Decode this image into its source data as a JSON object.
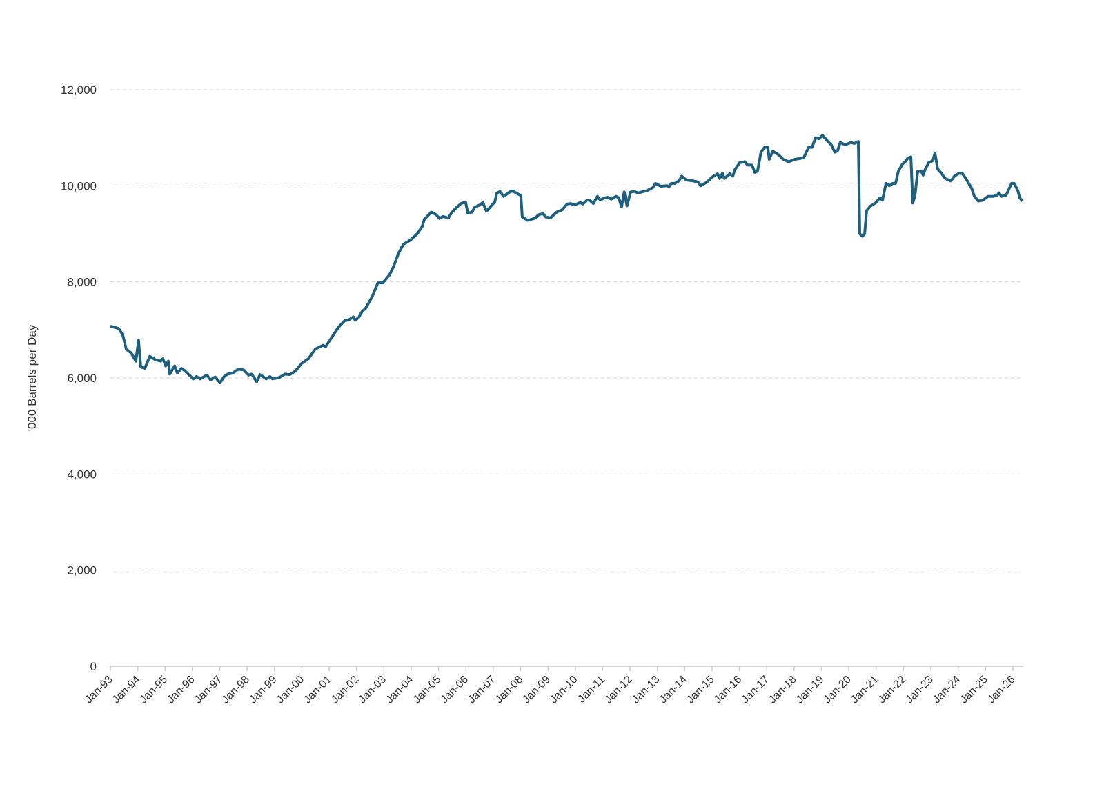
{
  "chart_data": {
    "type": "line",
    "y_label": "'000 Barrels per Day",
    "color": "#1d5f7f",
    "grid": true,
    "x": [
      1993.0,
      1993.3,
      1993.45,
      1993.58,
      1993.76,
      1993.93,
      1994.03,
      1994.11,
      1994.26,
      1994.44,
      1994.64,
      1994.84,
      1994.92,
      1995.02,
      1995.12,
      1995.17,
      1995.35,
      1995.45,
      1995.6,
      1995.72,
      1996.03,
      1996.15,
      1996.28,
      1996.53,
      1996.66,
      1996.83,
      1997.01,
      1997.16,
      1997.29,
      1997.47,
      1997.67,
      1997.87,
      1998.05,
      1998.17,
      1998.35,
      1998.47,
      1998.7,
      1998.83,
      1998.93,
      1999.18,
      1999.38,
      1999.56,
      1999.76,
      1999.99,
      2000.24,
      2000.49,
      2000.77,
      2000.87,
      2001.02,
      2001.33,
      2001.58,
      2001.7,
      2001.88,
      2001.95,
      2002.08,
      2002.2,
      2002.33,
      2002.58,
      2002.78,
      2002.96,
      2003.21,
      2003.34,
      2003.54,
      2003.71,
      2003.97,
      2004.22,
      2004.4,
      2004.48,
      2004.73,
      2004.91,
      2005.03,
      2005.16,
      2005.36,
      2005.49,
      2005.66,
      2005.82,
      2005.92,
      2005.99,
      2006.07,
      2006.22,
      2006.32,
      2006.5,
      2006.62,
      2006.75,
      2006.88,
      2006.98,
      2007.05,
      2007.13,
      2007.25,
      2007.38,
      2007.63,
      2007.73,
      2007.83,
      2008.01,
      2008.06,
      2008.26,
      2008.51,
      2008.67,
      2008.82,
      2008.92,
      2009.09,
      2009.32,
      2009.52,
      2009.7,
      2009.85,
      2009.95,
      2010.18,
      2010.28,
      2010.43,
      2010.53,
      2010.66,
      2010.81,
      2010.91,
      2011.06,
      2011.21,
      2011.31,
      2011.49,
      2011.59,
      2011.69,
      2011.79,
      2011.89,
      2012.02,
      2012.17,
      2012.3,
      2012.42,
      2012.63,
      2012.83,
      2012.93,
      2013.13,
      2013.36,
      2013.43,
      2013.51,
      2013.64,
      2013.79,
      2013.89,
      2014.06,
      2014.32,
      2014.49,
      2014.59,
      2014.82,
      2015.0,
      2015.2,
      2015.28,
      2015.38,
      2015.45,
      2015.65,
      2015.76,
      2015.83,
      2016.01,
      2016.21,
      2016.29,
      2016.46,
      2016.56,
      2016.66,
      2016.79,
      2016.92,
      2017.04,
      2017.09,
      2017.22,
      2017.42,
      2017.6,
      2017.8,
      2018.03,
      2018.35,
      2018.53,
      2018.66,
      2018.78,
      2018.91,
      2019.04,
      2019.19,
      2019.36,
      2019.49,
      2019.59,
      2019.69,
      2019.87,
      2020.07,
      2020.2,
      2020.35,
      2020.4,
      2020.5,
      2020.58,
      2020.65,
      2020.8,
      2021.0,
      2021.13,
      2021.23,
      2021.36,
      2021.48,
      2021.61,
      2021.71,
      2021.81,
      2021.96,
      2022.06,
      2022.17,
      2022.27,
      2022.34,
      2022.42,
      2022.52,
      2022.65,
      2022.72,
      2022.8,
      2022.92,
      2023.07,
      2023.15,
      2023.25,
      2023.4,
      2023.53,
      2023.73,
      2023.86,
      2024.03,
      2024.16,
      2024.28,
      2024.49,
      2024.59,
      2024.74,
      2024.91,
      2025.09,
      2025.29,
      2025.42,
      2025.49,
      2025.59,
      2025.75,
      2025.87,
      2025.95,
      2026.05,
      2026.18,
      2026.25,
      2026.35
    ],
    "values": [
      7080,
      7030,
      6900,
      6600,
      6520,
      6350,
      6780,
      6230,
      6200,
      6450,
      6380,
      6350,
      6400,
      6250,
      6350,
      6080,
      6250,
      6100,
      6200,
      6150,
      5980,
      6030,
      5980,
      6060,
      5960,
      6020,
      5900,
      6030,
      6080,
      6100,
      6180,
      6170,
      6060,
      6080,
      5920,
      6070,
      5980,
      6030,
      5980,
      6010,
      6080,
      6070,
      6140,
      6300,
      6400,
      6600,
      6680,
      6650,
      6780,
      7050,
      7200,
      7200,
      7270,
      7200,
      7260,
      7380,
      7450,
      7700,
      7980,
      7980,
      8150,
      8300,
      8600,
      8780,
      8870,
      9000,
      9150,
      9300,
      9450,
      9400,
      9320,
      9360,
      9330,
      9450,
      9550,
      9630,
      9650,
      9650,
      9430,
      9450,
      9550,
      9600,
      9650,
      9470,
      9550,
      9620,
      9650,
      9850,
      9880,
      9780,
      9880,
      9890,
      9850,
      9800,
      9350,
      9280,
      9320,
      9400,
      9420,
      9350,
      9330,
      9450,
      9500,
      9620,
      9630,
      9600,
      9650,
      9620,
      9700,
      9700,
      9630,
      9780,
      9700,
      9750,
      9760,
      9720,
      9780,
      9750,
      9560,
      9870,
      9580,
      9870,
      9880,
      9850,
      9870,
      9900,
      9960,
      10050,
      9990,
      10000,
      9980,
      10050,
      10050,
      10100,
      10200,
      10120,
      10100,
      10080,
      10000,
      10080,
      10180,
      10250,
      10150,
      10260,
      10150,
      10250,
      10200,
      10330,
      10480,
      10500,
      10430,
      10430,
      10280,
      10300,
      10700,
      10800,
      10800,
      10550,
      10720,
      10650,
      10550,
      10500,
      10550,
      10580,
      10800,
      10800,
      11000,
      10980,
      11050,
      10950,
      10850,
      10700,
      10730,
      10900,
      10850,
      10900,
      10880,
      10920,
      9000,
      8950,
      9000,
      9480,
      9580,
      9650,
      9750,
      9700,
      10050,
      10000,
      10050,
      10050,
      10300,
      10450,
      10500,
      10580,
      10600,
      9640,
      9800,
      10300,
      10300,
      10220,
      10350,
      10480,
      10520,
      10680,
      10350,
      10250,
      10150,
      10100,
      10200,
      10260,
      10250,
      10150,
      9950,
      9780,
      9680,
      9700,
      9780,
      9780,
      9800,
      9850,
      9780,
      9800,
      9950,
      10050,
      10050,
      9900,
      9750,
      9680
    ],
    "xlim": [
      1993,
      2026.38
    ],
    "xticks": [
      {
        "value": 1993,
        "label": "Jan-93"
      },
      {
        "value": 1994,
        "label": "Jan-94"
      },
      {
        "value": 1995,
        "label": "Jan-95"
      },
      {
        "value": 1996,
        "label": "Jan-96"
      },
      {
        "value": 1997,
        "label": "Jan-97"
      },
      {
        "value": 1998,
        "label": "Jan-98"
      },
      {
        "value": 1999,
        "label": "Jan-99"
      },
      {
        "value": 2000,
        "label": "Jan-00"
      },
      {
        "value": 2001,
        "label": "Jan-01"
      },
      {
        "value": 2002,
        "label": "Jan-02"
      },
      {
        "value": 2003,
        "label": "Jan-03"
      },
      {
        "value": 2004,
        "label": "Jan-04"
      },
      {
        "value": 2005,
        "label": "Jan-05"
      },
      {
        "value": 2006,
        "label": "Jan-06"
      },
      {
        "value": 2007,
        "label": "Jan-07"
      },
      {
        "value": 2008,
        "label": "Jan-08"
      },
      {
        "value": 2009,
        "label": "Jan-09"
      },
      {
        "value": 2010,
        "label": "Jan-10"
      },
      {
        "value": 2011,
        "label": "Jan-11"
      },
      {
        "value": 2012,
        "label": "Jan-12"
      },
      {
        "value": 2013,
        "label": "Jan-13"
      },
      {
        "value": 2014,
        "label": "Jan-14"
      },
      {
        "value": 2015,
        "label": "Jan-15"
      },
      {
        "value": 2016,
        "label": "Jan-16"
      },
      {
        "value": 2017,
        "label": "Jan-17"
      },
      {
        "value": 2018,
        "label": "Jan-18"
      },
      {
        "value": 2019,
        "label": "Jan-19"
      },
      {
        "value": 2020,
        "label": "Jan-20"
      },
      {
        "value": 2021,
        "label": "Jan-21"
      },
      {
        "value": 2022,
        "label": "Jan-22"
      },
      {
        "value": 2023,
        "label": "Jan-23"
      },
      {
        "value": 2024,
        "label": "Jan-24"
      },
      {
        "value": 2025,
        "label": "Jan-25"
      },
      {
        "value": 2026,
        "label": "Jan-26"
      }
    ],
    "ylim": [
      0,
      12000
    ],
    "yticks": [
      0,
      {
        "value": 2000,
        "label": "2,000"
      },
      {
        "value": 4000,
        "label": "4,000"
      },
      {
        "value": 6000,
        "label": "6,000"
      },
      {
        "value": 8000,
        "label": "8,000"
      },
      {
        "value": 10000,
        "label": "10,000"
      },
      {
        "value": 12000,
        "label": "12,000"
      }
    ]
  }
}
